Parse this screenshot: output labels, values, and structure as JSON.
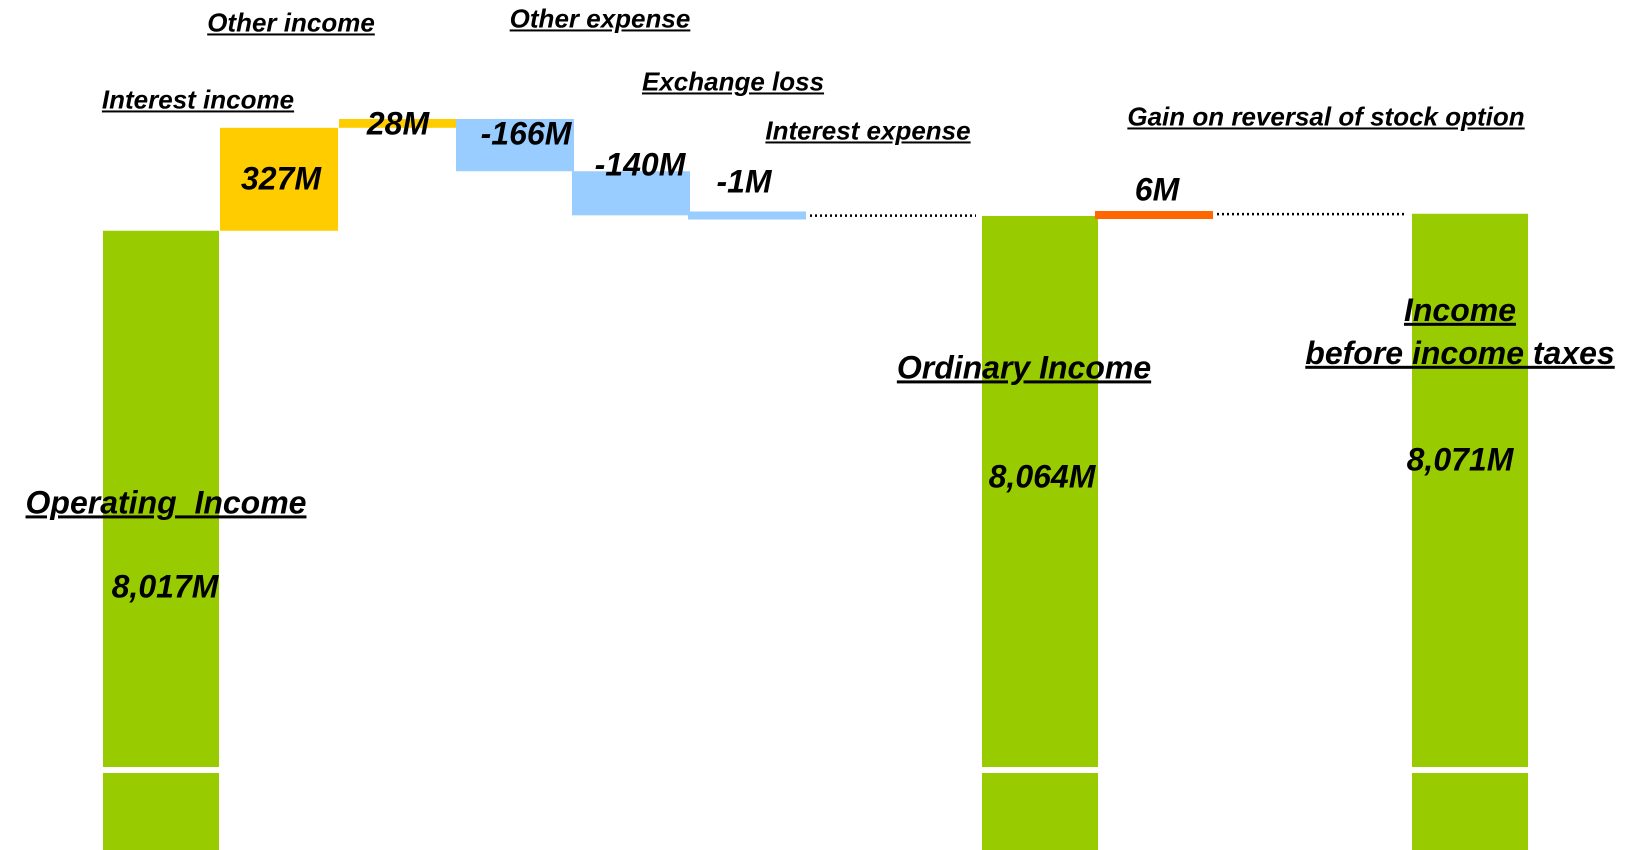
{
  "chart_data": {
    "type": "waterfall",
    "categories": [
      "Operating  Income",
      "Interest income",
      "Other income",
      "Other expense",
      "Exchange loss",
      "Interest expense",
      "Ordinary Income",
      "Gain on reversal of stock option",
      "Income\nbefore income taxes"
    ],
    "values": [
      8017,
      327,
      28,
      -166,
      -140,
      -1,
      8064,
      6,
      8071
    ],
    "value_labels": [
      "8,017M",
      "327M",
      "28M",
      "-166M",
      "-140M",
      "-1M",
      "8,064M",
      "6M",
      "8,071M"
    ],
    "measure": [
      "total",
      "relative",
      "relative",
      "relative",
      "relative",
      "relative",
      "total",
      "relative",
      "total"
    ],
    "colors": [
      "#99cc00",
      "#ffcc00",
      "#ffcc00",
      "#99ccff",
      "#99ccff",
      "#99ccff",
      "#99cc00",
      "#ff6600",
      "#99cc00"
    ],
    "ylim": [
      6050,
      8750
    ]
  }
}
